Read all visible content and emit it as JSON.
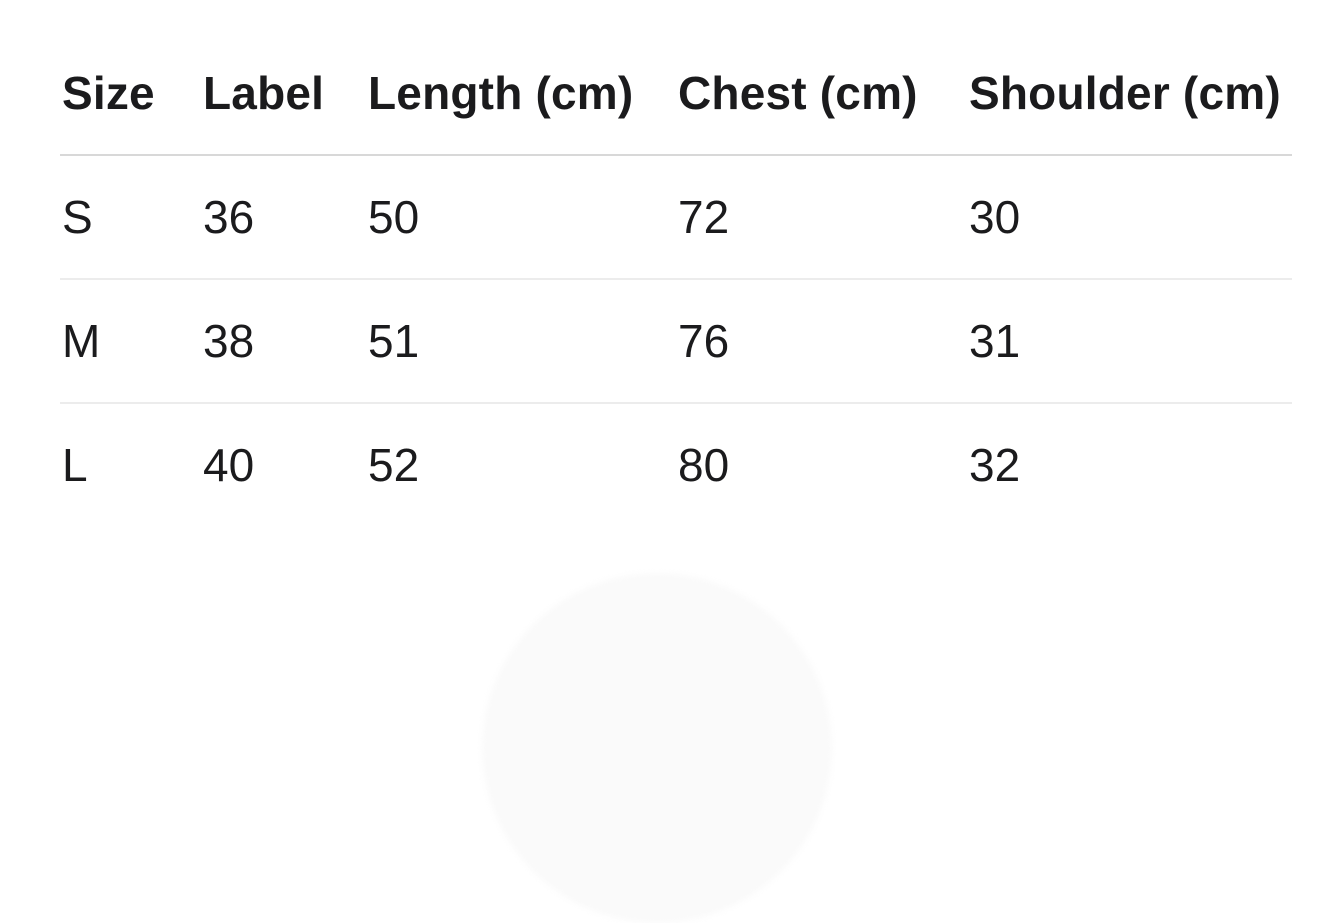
{
  "size_chart": {
    "columns": [
      "Size",
      "Label",
      "Length (cm)",
      "Chest (cm)",
      "Shoulder (cm)"
    ],
    "rows": [
      [
        "S",
        "36",
        "50",
        "72",
        "30"
      ],
      [
        "M",
        "38",
        "51",
        "76",
        "31"
      ],
      [
        "L",
        "40",
        "52",
        "80",
        "32"
      ]
    ]
  },
  "colors": {
    "text_color": "#1b1b1d",
    "header_divider_color": "#d8d8d8",
    "row_divider_color": "#ececec",
    "dome_color": "#fafafa"
  }
}
